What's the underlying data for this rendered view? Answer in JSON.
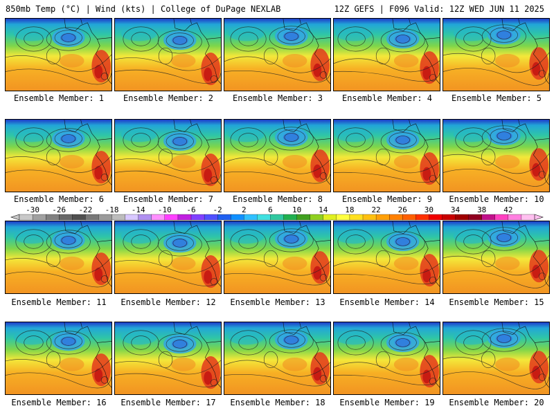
{
  "header": {
    "left_title": "850mb Temp (°C) | Wind (kts) | College of DuPage NEXLAB",
    "right_title": "12Z GEFS | F096 Valid: 12Z WED JUN 11 2025"
  },
  "members": [
    {
      "label": "Ensemble Member: 1"
    },
    {
      "label": "Ensemble Member: 2"
    },
    {
      "label": "Ensemble Member: 3"
    },
    {
      "label": "Ensemble Member: 4"
    },
    {
      "label": "Ensemble Member: 5"
    },
    {
      "label": "Ensemble Member: 6"
    },
    {
      "label": "Ensemble Member: 7"
    },
    {
      "label": "Ensemble Member: 8"
    },
    {
      "label": "Ensemble Member: 9"
    },
    {
      "label": "Ensemble Member: 10"
    },
    {
      "label": "Ensemble Member: 11"
    },
    {
      "label": "Ensemble Member: 12"
    },
    {
      "label": "Ensemble Member: 13"
    },
    {
      "label": "Ensemble Member: 14"
    },
    {
      "label": "Ensemble Member: 15"
    },
    {
      "label": "Ensemble Member: 16"
    },
    {
      "label": "Ensemble Member: 17"
    },
    {
      "label": "Ensemble Member: 18"
    },
    {
      "label": "Ensemble Member: 19"
    },
    {
      "label": "Ensemble Member: 20"
    }
  ],
  "colorbar": {
    "tick_labels": [
      "-30",
      "-26",
      "-22",
      "-18",
      "-14",
      "-10",
      "-6",
      "-2",
      "2",
      "6",
      "10",
      "14",
      "18",
      "22",
      "26",
      "30",
      "34",
      "38",
      "42"
    ],
    "colors": [
      "#c8c8c8",
      "#a0a0a0",
      "#808080",
      "#686868",
      "#505050",
      "#787878",
      "#9a9a9a",
      "#bcbcbc",
      "#d8c8ff",
      "#b090f0",
      "#ff90ff",
      "#ff40ff",
      "#c020e0",
      "#8040ff",
      "#5050ff",
      "#2060f0",
      "#1090ff",
      "#30c0ff",
      "#40e0e0",
      "#30c8a0",
      "#20b050",
      "#40a020",
      "#90d020",
      "#e0f020",
      "#ffff40",
      "#ffe020",
      "#ffc010",
      "#ffa008",
      "#ff8000",
      "#ff6000",
      "#ff3000",
      "#f00000",
      "#c80000",
      "#a00000",
      "#900020",
      "#c0108a",
      "#ff40c0",
      "#ff80e0",
      "#ffc0f0"
    ]
  }
}
